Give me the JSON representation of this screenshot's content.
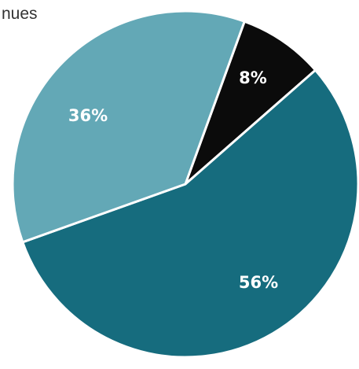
{
  "chart_data": {
    "type": "pie",
    "title": "nues",
    "slices": [
      {
        "label": "8%",
        "value": 8,
        "color": "#0b0b0b"
      },
      {
        "label": "56%",
        "value": 56,
        "color": "#166c7e"
      },
      {
        "label": "36%",
        "value": 36,
        "color": "#63a8b6"
      }
    ],
    "start_angle_deg": 20,
    "direction": "clockwise",
    "separator_color": "#ffffff"
  }
}
